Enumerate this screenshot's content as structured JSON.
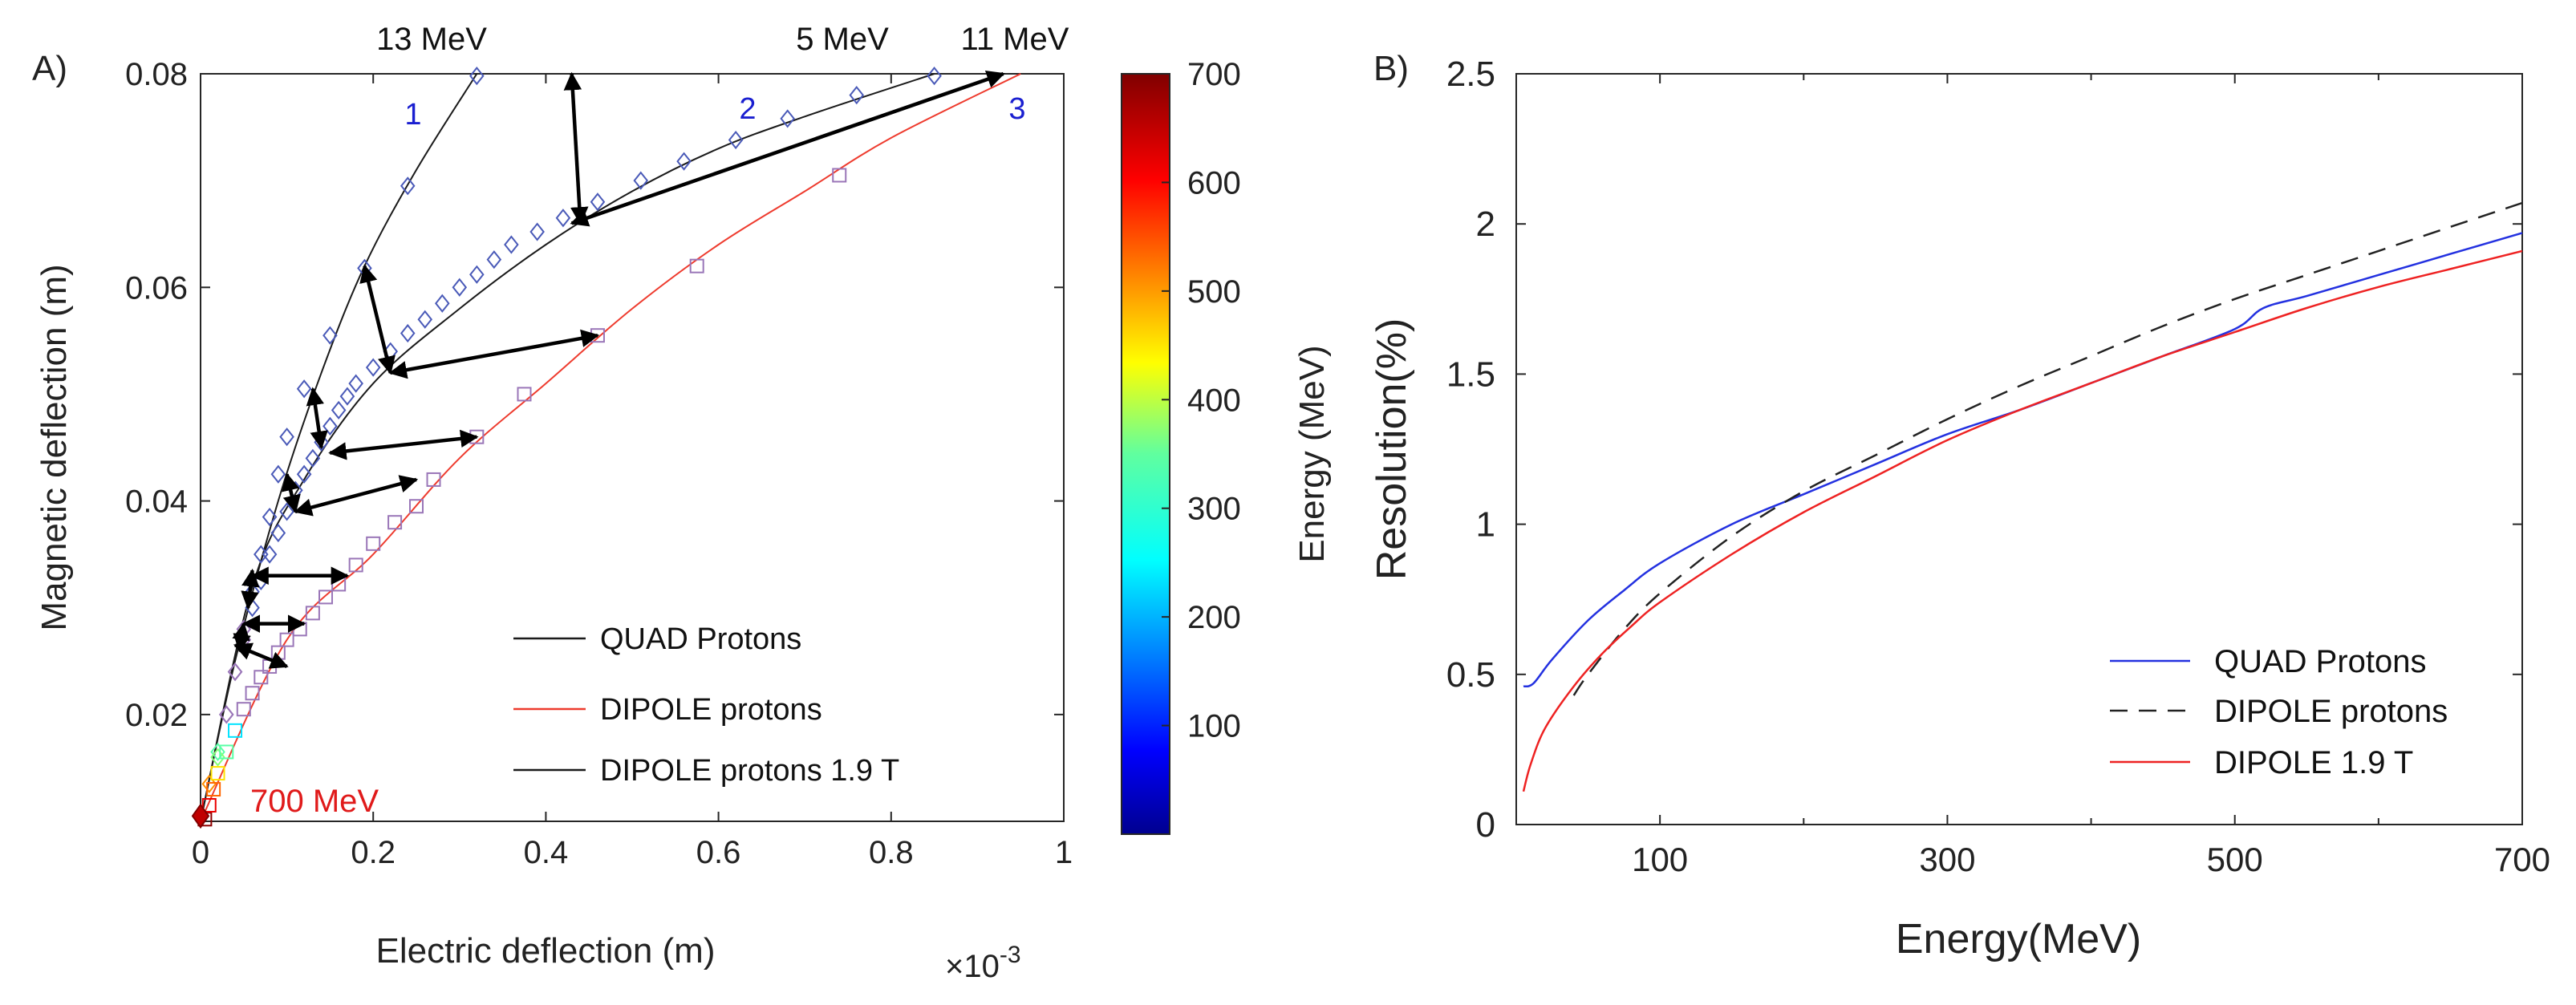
{
  "figure": {
    "panel_a_label": "A)",
    "panel_b_label": "B)"
  },
  "colors": {
    "axis": "#262626",
    "quad": "#1a1a1a",
    "dipole_a": "#ee3b2e",
    "marker_blue": "#4a5ab8",
    "marker_purple": "#9a76b8",
    "number_blue": "#1a1fd0",
    "quad_b": "#2331e0",
    "dipole_b": "#222222",
    "dipole19_b": "#ee2222",
    "label_red": "#e01a1a"
  },
  "chart_data": [
    {
      "id": "A",
      "type": "line",
      "title": "",
      "xlabel": "Electric deflection (m)",
      "ylabel": "Magnetic deflection (m)",
      "x_multiplier_label": "×10",
      "x_multiplier_exponent": "-3",
      "xlim": [
        0,
        1
      ],
      "ylim": [
        0.01,
        0.08
      ],
      "xticks": [
        0,
        0.2,
        0.4,
        0.6,
        0.8,
        1
      ],
      "xtick_labels": [
        "0",
        "0.2",
        "0.4",
        "0.6",
        "0.8",
        "1"
      ],
      "yticks": [
        0.02,
        0.04,
        0.06,
        0.08
      ],
      "ytick_labels": [
        "0.02",
        "0.04",
        "0.06",
        "0.08"
      ],
      "series": [
        {
          "name": "QUAD Protons",
          "style": "solid",
          "color": "#1a1a1a",
          "points": [
            [
              0.0,
              0.01
            ],
            [
              0.04,
              0.025
            ],
            [
              0.09,
              0.04
            ],
            [
              0.14,
              0.052
            ],
            [
              0.19,
              0.062
            ],
            [
              0.25,
              0.071
            ],
            [
              0.32,
              0.08
            ]
          ]
        },
        {
          "name": "DIPOLE protons",
          "style": "solid",
          "color": "#ee3b2e",
          "points": [
            [
              0.0,
              0.01
            ],
            [
              0.1,
              0.027
            ],
            [
              0.2,
              0.035
            ],
            [
              0.3,
              0.044
            ],
            [
              0.4,
              0.051
            ],
            [
              0.5,
              0.058
            ],
            [
              0.6,
              0.064
            ],
            [
              0.7,
              0.069
            ],
            [
              0.8,
              0.074
            ],
            [
              0.95,
              0.08
            ]
          ]
        },
        {
          "name": "DIPOLE protons 1.9 T",
          "style": "solid",
          "color": "#1a1a1a",
          "points": [
            [
              0.0,
              0.01
            ],
            [
              0.06,
              0.032
            ],
            [
              0.12,
              0.042
            ],
            [
              0.2,
              0.051
            ],
            [
              0.3,
              0.058
            ],
            [
              0.4,
              0.064
            ],
            [
              0.5,
              0.069
            ],
            [
              0.6,
              0.073
            ],
            [
              0.7,
              0.076
            ],
            [
              0.85,
              0.08
            ]
          ]
        }
      ],
      "markers": {
        "diamonds_curve1": [
          [
            0.0,
            0.0107
          ],
          [
            0.01,
            0.0135
          ],
          [
            0.02,
            0.0165
          ],
          [
            0.03,
            0.02
          ],
          [
            0.04,
            0.024
          ],
          [
            0.05,
            0.028
          ],
          [
            0.06,
            0.0315
          ],
          [
            0.07,
            0.035
          ],
          [
            0.08,
            0.0385
          ],
          [
            0.09,
            0.0425
          ],
          [
            0.1,
            0.046
          ],
          [
            0.12,
            0.0505
          ],
          [
            0.15,
            0.0555
          ],
          [
            0.19,
            0.0618
          ],
          [
            0.24,
            0.0695
          ],
          [
            0.32,
            0.0798
          ]
        ],
        "diamonds_curve2": [
          [
            0.02,
            0.016
          ],
          [
            0.03,
            0.02
          ],
          [
            0.04,
            0.024
          ],
          [
            0.05,
            0.027
          ],
          [
            0.06,
            0.03
          ],
          [
            0.07,
            0.0325
          ],
          [
            0.08,
            0.035
          ],
          [
            0.09,
            0.037
          ],
          [
            0.1,
            0.039
          ],
          [
            0.11,
            0.041
          ],
          [
            0.12,
            0.0425
          ],
          [
            0.13,
            0.044
          ],
          [
            0.14,
            0.0455
          ],
          [
            0.15,
            0.047
          ],
          [
            0.16,
            0.0485
          ],
          [
            0.17,
            0.0498
          ],
          [
            0.18,
            0.051
          ],
          [
            0.2,
            0.0525
          ],
          [
            0.22,
            0.054
          ],
          [
            0.24,
            0.0557
          ],
          [
            0.26,
            0.057
          ],
          [
            0.28,
            0.0585
          ],
          [
            0.3,
            0.06
          ],
          [
            0.32,
            0.0612
          ],
          [
            0.34,
            0.0626
          ],
          [
            0.36,
            0.064
          ],
          [
            0.39,
            0.0652
          ],
          [
            0.42,
            0.0665
          ],
          [
            0.46,
            0.068
          ],
          [
            0.51,
            0.07
          ],
          [
            0.56,
            0.0718
          ],
          [
            0.62,
            0.0738
          ],
          [
            0.68,
            0.0758
          ],
          [
            0.76,
            0.078
          ],
          [
            0.85,
            0.0798
          ]
        ],
        "squares_curve3": [
          [
            0.005,
            0.0102
          ],
          [
            0.01,
            0.0115
          ],
          [
            0.015,
            0.013
          ],
          [
            0.02,
            0.0145
          ],
          [
            0.03,
            0.0165
          ],
          [
            0.04,
            0.0185
          ],
          [
            0.05,
            0.0205
          ],
          [
            0.06,
            0.022
          ],
          [
            0.07,
            0.0235
          ],
          [
            0.08,
            0.0245
          ],
          [
            0.09,
            0.0258
          ],
          [
            0.1,
            0.027
          ],
          [
            0.115,
            0.028
          ],
          [
            0.13,
            0.0295
          ],
          [
            0.145,
            0.031
          ],
          [
            0.16,
            0.0322
          ],
          [
            0.18,
            0.034
          ],
          [
            0.2,
            0.036
          ],
          [
            0.225,
            0.038
          ],
          [
            0.25,
            0.0395
          ],
          [
            0.27,
            0.042
          ],
          [
            0.32,
            0.046
          ],
          [
            0.375,
            0.05
          ],
          [
            0.46,
            0.0555
          ],
          [
            0.575,
            0.062
          ],
          [
            0.74,
            0.0705
          ]
        ]
      },
      "arrows": [
        [
          [
            0.43,
            0.08
          ],
          [
            0.44,
            0.066
          ]
        ],
        [
          [
            0.93,
            0.08
          ],
          [
            0.43,
            0.066
          ]
        ],
        [
          [
            0.19,
            0.062
          ],
          [
            0.22,
            0.052
          ]
        ],
        [
          [
            0.46,
            0.0555
          ],
          [
            0.22,
            0.052
          ]
        ],
        [
          [
            0.13,
            0.0505
          ],
          [
            0.14,
            0.045
          ]
        ],
        [
          [
            0.32,
            0.046
          ],
          [
            0.15,
            0.0445
          ]
        ],
        [
          [
            0.1,
            0.0425
          ],
          [
            0.11,
            0.039
          ]
        ],
        [
          [
            0.25,
            0.042
          ],
          [
            0.11,
            0.039
          ]
        ],
        [
          [
            0.06,
            0.0335
          ],
          [
            0.055,
            0.03
          ]
        ],
        [
          [
            0.17,
            0.033
          ],
          [
            0.06,
            0.033
          ]
        ],
        [
          [
            0.05,
            0.0285
          ],
          [
            0.045,
            0.026
          ]
        ],
        [
          [
            0.12,
            0.0285
          ],
          [
            0.05,
            0.0285
          ]
        ],
        [
          [
            0.04,
            0.0265
          ],
          [
            0.1,
            0.0245
          ]
        ]
      ],
      "annotations": {
        "e13": "13 MeV",
        "e5": "5 MeV",
        "e11": "11 MeV",
        "n1": "1",
        "n2": "2",
        "n3": "3",
        "e700": "700 MeV"
      },
      "legend": {
        "position": "bottom-right",
        "entries": [
          "QUAD Protons",
          "DIPOLE protons",
          "DIPOLE protons 1.9 T"
        ]
      },
      "colorbar": {
        "label": "Energy (MeV)",
        "range": [
          0,
          700
        ],
        "ticks": [
          100,
          200,
          300,
          400,
          500,
          600,
          700
        ],
        "tick_labels": [
          "100",
          "200",
          "300",
          "400",
          "500",
          "600",
          "700"
        ],
        "colormap": "jet"
      }
    },
    {
      "id": "B",
      "type": "line",
      "title": "",
      "xlabel": "Energy(MeV)",
      "ylabel": "Resolution(%)",
      "xlim": [
        0,
        700
      ],
      "ylim": [
        0,
        2.5
      ],
      "xticks": [
        100,
        300,
        500,
        700
      ],
      "xtick_labels": [
        "100",
        "300",
        "500",
        "700"
      ],
      "xminor": [
        200,
        400,
        600
      ],
      "yticks": [
        0,
        0.5,
        1,
        1.5,
        2,
        2.5
      ],
      "ytick_labels": [
        "0",
        "0.5",
        "1",
        "1.5",
        "2",
        "2.5"
      ],
      "series": [
        {
          "name": "QUAD Protons",
          "style": "solid",
          "color": "#2331e0",
          "x": [
            5,
            12,
            25,
            50,
            75,
            100,
            150,
            200,
            250,
            300,
            350,
            400,
            450,
            500,
            520,
            550,
            600,
            650,
            700
          ],
          "y": [
            0.46,
            0.47,
            0.55,
            0.68,
            0.78,
            0.87,
            1.0,
            1.1,
            1.2,
            1.3,
            1.38,
            1.47,
            1.56,
            1.65,
            1.72,
            1.76,
            1.83,
            1.9,
            1.97
          ]
        },
        {
          "name": "DIPOLE protons",
          "style": "dashed",
          "color": "#222222",
          "x": [
            40,
            50,
            75,
            100,
            150,
            200,
            250,
            300,
            350,
            400,
            450,
            500,
            550,
            600,
            650,
            700
          ],
          "y": [
            0.43,
            0.5,
            0.65,
            0.77,
            0.96,
            1.11,
            1.23,
            1.35,
            1.46,
            1.56,
            1.66,
            1.75,
            1.83,
            1.91,
            1.99,
            2.07
          ]
        },
        {
          "name": "DIPOLE 1.9 T",
          "style": "solid",
          "color": "#ee2222",
          "x": [
            5,
            10,
            20,
            40,
            60,
            80,
            100,
            150,
            200,
            250,
            300,
            350,
            400,
            450,
            500,
            550,
            600,
            650,
            700
          ],
          "y": [
            0.11,
            0.2,
            0.32,
            0.46,
            0.57,
            0.66,
            0.74,
            0.9,
            1.04,
            1.16,
            1.28,
            1.38,
            1.47,
            1.56,
            1.64,
            1.72,
            1.79,
            1.85,
            1.91
          ]
        }
      ],
      "legend": {
        "position": "bottom-right",
        "entries": [
          "QUAD Protons",
          "DIPOLE protons",
          "DIPOLE 1.9 T"
        ]
      }
    }
  ]
}
